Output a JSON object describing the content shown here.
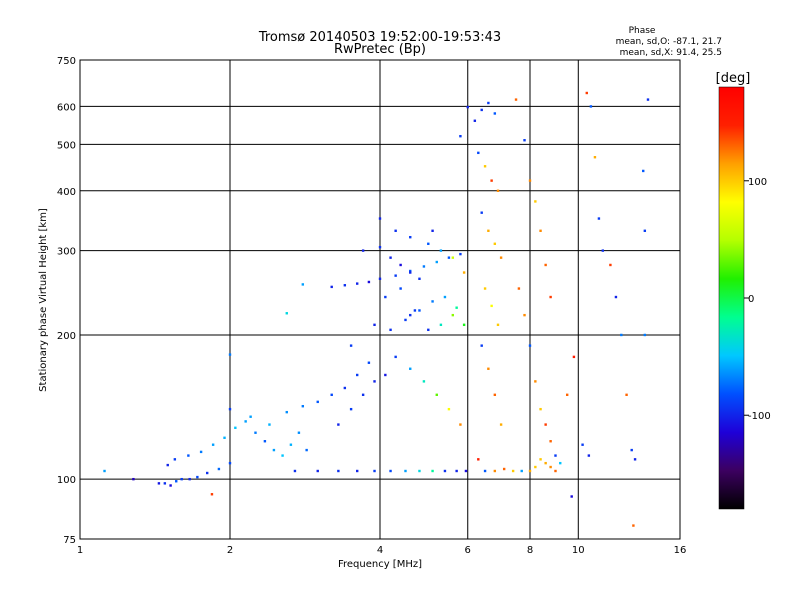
{
  "chart_data": {
    "type": "scatter",
    "title": "Tromsø 20140503 19:52:00-19:53:43",
    "subtitle": "RwPretec (Bp)",
    "xlabel": "Frequency [MHz]",
    "ylabel": "Stationary phase Virtual Height [km]",
    "x_scale": "log",
    "y_scale": "log",
    "xlim": [
      1,
      16
    ],
    "ylim": [
      75,
      750
    ],
    "x_ticks": [
      1,
      2,
      4,
      6,
      8,
      10,
      16
    ],
    "x_tick_labels": [
      "1",
      "2",
      "4",
      "6",
      "8",
      "10",
      "16"
    ],
    "y_ticks": [
      75,
      100,
      200,
      300,
      400,
      500,
      600,
      750
    ],
    "y_tick_labels": [
      "75",
      "100",
      "200",
      "300",
      "400",
      "500",
      "600",
      "750"
    ],
    "grid": true,
    "phase_stats": {
      "title": "Phase",
      "line_o": "mean, sd,O: -87.1, 21.7",
      "line_x": "mean, sd,X:  91.4, 25.5"
    },
    "colorbar": {
      "label": "[deg]",
      "range": [
        -180,
        180
      ],
      "ticks": [
        100,
        0,
        -100
      ],
      "tick_labels": [
        "100",
        "0",
        "-100"
      ],
      "colormap": [
        "#000000",
        "#3c0060",
        "#1e00d8",
        "#0050ff",
        "#00c8ff",
        "#00ff90",
        "#20f000",
        "#b4ff00",
        "#ffff00",
        "#ffa000",
        "#ff2000",
        "#ff0000"
      ]
    },
    "series": [
      {
        "points": [
          [
            1.44,
            98,
            -105
          ],
          [
            1.48,
            98,
            -95
          ],
          [
            1.52,
            97,
            -110
          ],
          [
            1.56,
            99,
            -80
          ],
          [
            1.6,
            100,
            -90
          ],
          [
            1.66,
            100,
            -100
          ],
          [
            1.72,
            101,
            -85
          ],
          [
            1.8,
            103,
            -95
          ],
          [
            1.9,
            105,
            -75
          ],
          [
            2.0,
            108,
            -85
          ],
          [
            1.5,
            107,
            -100
          ],
          [
            1.55,
            110,
            -90
          ],
          [
            1.65,
            112,
            -80
          ],
          [
            1.75,
            114,
            -70
          ],
          [
            1.85,
            118,
            -60
          ],
          [
            1.95,
            122,
            -55
          ],
          [
            2.05,
            128,
            -50
          ],
          [
            2.15,
            132,
            -60
          ],
          [
            2.25,
            125,
            -70
          ],
          [
            2.35,
            120,
            -80
          ],
          [
            2.45,
            115,
            -60
          ],
          [
            2.55,
            112,
            -50
          ],
          [
            2.65,
            118,
            -55
          ],
          [
            2.75,
            125,
            -65
          ],
          [
            2.85,
            115,
            -75
          ],
          [
            2.0,
            140,
            -90
          ],
          [
            2.2,
            135,
            -60
          ],
          [
            2.4,
            130,
            -55
          ],
          [
            2.6,
            138,
            -65
          ],
          [
            2.8,
            142,
            -70
          ],
          [
            3.0,
            145,
            -80
          ],
          [
            3.2,
            150,
            -85
          ],
          [
            3.4,
            155,
            -95
          ],
          [
            3.6,
            165,
            -90
          ],
          [
            3.8,
            175,
            -85
          ],
          [
            3.3,
            130,
            -100
          ],
          [
            3.5,
            140,
            -90
          ],
          [
            3.7,
            150,
            -95
          ],
          [
            3.9,
            160,
            -100
          ],
          [
            4.1,
            165,
            -105
          ],
          [
            2.7,
            104,
            -95
          ],
          [
            3.0,
            104,
            -100
          ],
          [
            3.3,
            104,
            -95
          ],
          [
            3.6,
            104,
            -100
          ],
          [
            3.9,
            104,
            -90
          ],
          [
            4.2,
            104,
            -85
          ],
          [
            4.5,
            104,
            -60
          ],
          [
            4.8,
            104,
            -40
          ],
          [
            5.1,
            104,
            -20
          ],
          [
            5.4,
            104,
            -95
          ],
          [
            5.7,
            104,
            -100
          ],
          [
            5.95,
            104,
            -110
          ],
          [
            3.2,
            252,
            -100
          ],
          [
            3.4,
            254,
            -95
          ],
          [
            3.6,
            256,
            -100
          ],
          [
            3.8,
            258,
            -110
          ],
          [
            4.0,
            262,
            -100
          ],
          [
            4.3,
            266,
            -90
          ],
          [
            4.6,
            272,
            -80
          ],
          [
            4.9,
            278,
            -70
          ],
          [
            5.2,
            284,
            -60
          ],
          [
            5.5,
            290,
            -80
          ],
          [
            5.8,
            295,
            -90
          ],
          [
            3.7,
            300,
            -100
          ],
          [
            4.0,
            305,
            -95
          ],
          [
            4.2,
            290,
            -100
          ],
          [
            4.4,
            280,
            -110
          ],
          [
            4.6,
            270,
            -100
          ],
          [
            4.8,
            262,
            -95
          ],
          [
            3.9,
            210,
            -100
          ],
          [
            4.2,
            205,
            -95
          ],
          [
            4.5,
            215,
            -90
          ],
          [
            4.8,
            225,
            -80
          ],
          [
            5.1,
            235,
            -70
          ],
          [
            5.4,
            240,
            -60
          ],
          [
            5.7,
            228,
            -20
          ],
          [
            5.9,
            210,
            10
          ],
          [
            4.1,
            240,
            -90
          ],
          [
            4.4,
            250,
            -85
          ],
          [
            4.7,
            225,
            -90
          ],
          [
            5.0,
            205,
            -95
          ],
          [
            5.3,
            210,
            -30
          ],
          [
            5.6,
            220,
            40
          ],
          [
            4.3,
            180,
            -90
          ],
          [
            4.6,
            170,
            -60
          ],
          [
            4.9,
            160,
            -30
          ],
          [
            5.2,
            150,
            30
          ],
          [
            5.5,
            140,
            80
          ],
          [
            5.8,
            130,
            120
          ],
          [
            4.0,
            350,
            -100
          ],
          [
            4.3,
            330,
            -95
          ],
          [
            4.6,
            320,
            -90
          ],
          [
            5.0,
            310,
            -80
          ],
          [
            5.3,
            300,
            -60
          ],
          [
            5.6,
            290,
            60
          ],
          [
            5.9,
            270,
            110
          ],
          [
            6.2,
            560,
            -100
          ],
          [
            6.4,
            590,
            -95
          ],
          [
            6.6,
            610,
            -90
          ],
          [
            6.8,
            580,
            -80
          ],
          [
            6.3,
            480,
            -85
          ],
          [
            6.5,
            450,
            100
          ],
          [
            6.7,
            420,
            140
          ],
          [
            6.9,
            400,
            120
          ],
          [
            6.4,
            360,
            -90
          ],
          [
            6.6,
            330,
            110
          ],
          [
            6.8,
            310,
            100
          ],
          [
            7.0,
            290,
            120
          ],
          [
            6.5,
            250,
            100
          ],
          [
            6.7,
            230,
            80
          ],
          [
            6.9,
            210,
            100
          ],
          [
            6.4,
            190,
            -90
          ],
          [
            6.6,
            170,
            120
          ],
          [
            6.8,
            150,
            130
          ],
          [
            7.0,
            130,
            110
          ],
          [
            6.3,
            110,
            150
          ],
          [
            6.5,
            104,
            -80
          ],
          [
            6.8,
            104,
            120
          ],
          [
            7.1,
            105,
            130
          ],
          [
            7.4,
            104,
            100
          ],
          [
            7.7,
            104,
            -60
          ],
          [
            8.0,
            104,
            110
          ],
          [
            8.2,
            106,
            100
          ],
          [
            8.4,
            110,
            100
          ],
          [
            8.6,
            108,
            110
          ],
          [
            8.8,
            106,
            120
          ],
          [
            9.0,
            104,
            130
          ],
          [
            9.2,
            108,
            -50
          ],
          [
            7.5,
            620,
            130
          ],
          [
            7.8,
            510,
            -90
          ],
          [
            8.0,
            420,
            120
          ],
          [
            8.2,
            380,
            100
          ],
          [
            8.4,
            330,
            120
          ],
          [
            8.6,
            280,
            130
          ],
          [
            8.8,
            240,
            140
          ],
          [
            7.6,
            250,
            130
          ],
          [
            7.8,
            220,
            120
          ],
          [
            8.0,
            190,
            -80
          ],
          [
            8.2,
            160,
            120
          ],
          [
            8.4,
            140,
            100
          ],
          [
            8.6,
            130,
            140
          ],
          [
            8.8,
            120,
            130
          ],
          [
            9.0,
            112,
            -90
          ],
          [
            9.5,
            150,
            130
          ],
          [
            9.8,
            180,
            150
          ],
          [
            10.4,
            640,
            140
          ],
          [
            10.6,
            600,
            -80
          ],
          [
            10.8,
            470,
            110
          ],
          [
            11.0,
            350,
            -90
          ],
          [
            11.2,
            300,
            -95
          ],
          [
            11.6,
            280,
            140
          ],
          [
            11.9,
            240,
            -100
          ],
          [
            12.2,
            200,
            -70
          ],
          [
            12.5,
            150,
            130
          ],
          [
            12.8,
            115,
            -90
          ],
          [
            13.0,
            110,
            -100
          ],
          [
            13.6,
            330,
            -90
          ],
          [
            13.6,
            200,
            -70
          ],
          [
            13.8,
            620,
            -95
          ],
          [
            13.5,
            440,
            -80
          ],
          [
            12.9,
            80,
            130
          ],
          [
            10.2,
            118,
            -90
          ],
          [
            10.5,
            112,
            -100
          ],
          [
            9.7,
            92,
            -110
          ],
          [
            1.12,
            104,
            -60
          ],
          [
            1.84,
            93,
            140
          ],
          [
            1.28,
            100,
            -120
          ],
          [
            2.0,
            182,
            -70
          ],
          [
            2.6,
            222,
            -40
          ],
          [
            2.8,
            255,
            -60
          ],
          [
            6.0,
            598,
            -100
          ],
          [
            5.8,
            520,
            -90
          ],
          [
            4.6,
            220,
            -95
          ],
          [
            5.1,
            330,
            -100
          ],
          [
            3.5,
            190,
            -90
          ]
        ]
      }
    ]
  }
}
